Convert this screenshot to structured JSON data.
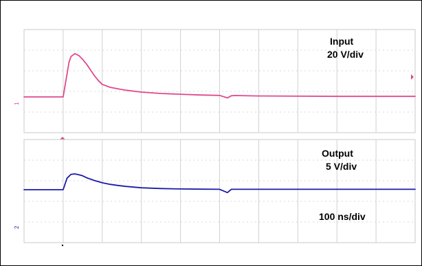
{
  "chart_data": [
    {
      "type": "line",
      "panel": "top",
      "title": "Input",
      "scale": "20 V/div",
      "timebase": "100 ns/div",
      "grid": true,
      "x_div": [
        0,
        10
      ],
      "y_div": [
        -1.6,
        2.3
      ],
      "series": [
        {
          "name": "",
          "color": "#e0488c",
          "x": [
            0,
            0.5,
            0.8,
            0.9,
            1.0,
            1.05,
            1.1,
            1.15,
            1.2,
            1.3,
            1.4,
            1.5,
            1.6,
            1.7,
            1.8,
            1.9,
            2.0,
            2.2,
            2.4,
            2.6,
            3.0,
            3.5,
            4.0,
            4.5,
            5.0,
            5.2,
            5.3,
            5.4,
            6.0,
            7.0,
            8.0,
            9.0,
            10.0
          ],
          "values": [
            0,
            0,
            0,
            0,
            0,
            0.6,
            1.2,
            1.8,
            2.1,
            2.25,
            2.15,
            1.95,
            1.7,
            1.4,
            1.1,
            0.85,
            0.65,
            0.5,
            0.42,
            0.35,
            0.25,
            0.18,
            0.14,
            0.1,
            0.08,
            -0.05,
            0.06,
            0.07,
            0.05,
            0.04,
            0.03,
            0.03,
            0.03
          ]
        }
      ]
    },
    {
      "type": "line",
      "panel": "bottom",
      "title": "Output",
      "scale": "5 V/div",
      "timebase": "100 ns/div",
      "grid": true,
      "x_div": [
        0,
        10
      ],
      "y_div": [
        -2.5,
        1.6
      ],
      "series": [
        {
          "name": "",
          "color": "#1a1aa8",
          "x": [
            0,
            0.5,
            0.8,
            0.9,
            1.0,
            1.05,
            1.1,
            1.2,
            1.3,
            1.4,
            1.5,
            1.6,
            1.8,
            2.0,
            2.2,
            2.4,
            2.6,
            3.0,
            3.5,
            4.0,
            4.5,
            5.0,
            5.2,
            5.3,
            5.4,
            6.0,
            7.0,
            8.0,
            9.0,
            10.0
          ],
          "values": [
            0,
            0,
            0,
            0,
            0,
            0.3,
            0.6,
            0.8,
            0.82,
            0.78,
            0.72,
            0.62,
            0.48,
            0.36,
            0.28,
            0.22,
            0.17,
            0.1,
            0.06,
            0.04,
            0.03,
            0.02,
            -0.15,
            0.02,
            0.02,
            0.02,
            0.02,
            0.02,
            0.02,
            0.02
          ]
        }
      ]
    }
  ],
  "labels": {
    "input_title": "Input",
    "input_scale": "20 V/div",
    "output_title": "Output",
    "output_scale": "5 V/div",
    "timebase": "100 ns/div"
  }
}
